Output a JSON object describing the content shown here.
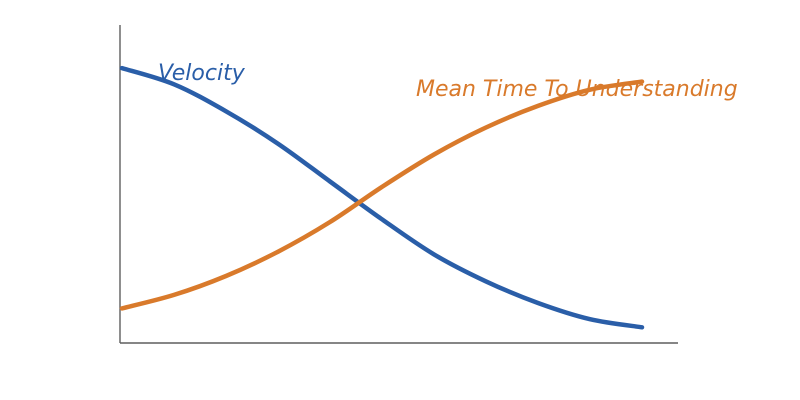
{
  "chart_data": {
    "type": "line",
    "title": "",
    "xlabel": "",
    "ylabel": "",
    "xlim": [
      0,
      10
    ],
    "ylim": [
      0,
      10
    ],
    "grid": false,
    "series": [
      {
        "name": "Velocity",
        "color": "#2a5ea8",
        "x": [
          0,
          1,
          2,
          3,
          4,
          5,
          6,
          7,
          8,
          9,
          10
        ],
        "y": [
          9.7,
          9.1,
          8.1,
          6.9,
          5.5,
          4.1,
          2.8,
          1.8,
          1.0,
          0.4,
          0.1
        ]
      },
      {
        "name": "Mean Time To Understanding",
        "color": "#d97a2b",
        "x": [
          0,
          1,
          2,
          3,
          4,
          5,
          6,
          7,
          8,
          9,
          10
        ],
        "y": [
          0.8,
          1.3,
          2.0,
          2.9,
          4.0,
          5.3,
          6.5,
          7.5,
          8.3,
          8.9,
          9.2
        ]
      }
    ]
  }
}
